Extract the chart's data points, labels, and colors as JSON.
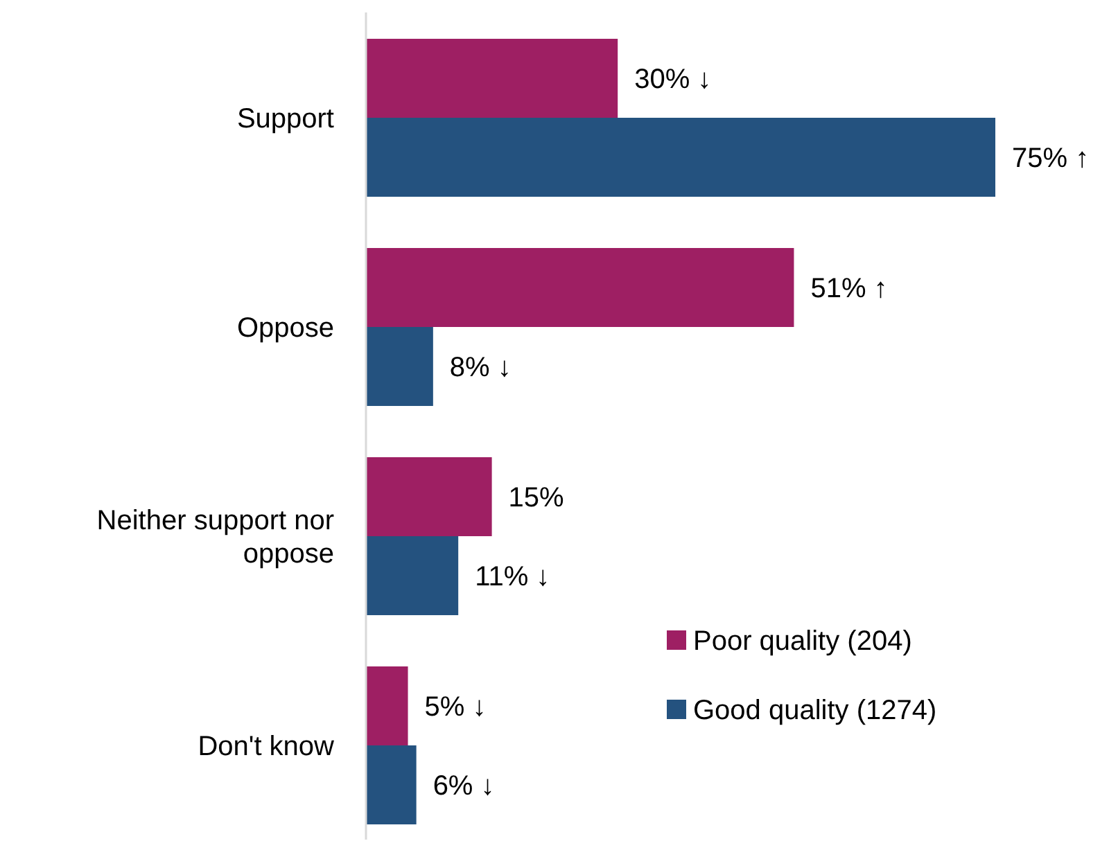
{
  "chart_data": {
    "type": "bar",
    "orientation": "horizontal",
    "categories": [
      "Support",
      "Oppose",
      "Neither support nor oppose",
      "Don't know"
    ],
    "series": [
      {
        "name": "Poor quality (204)",
        "color": "#9e1f63",
        "values": [
          30,
          51,
          15,
          5
        ],
        "value_labels": [
          "30% ↓",
          "51% ↑",
          "15%",
          "5% ↓"
        ]
      },
      {
        "name": "Good quality (1274)",
        "color": "#24527f",
        "values": [
          75,
          8,
          11,
          6
        ],
        "value_labels": [
          "75% ↑",
          "8% ↓",
          "11% ↓",
          "6% ↓"
        ]
      }
    ],
    "legend": "bottom right"
  }
}
